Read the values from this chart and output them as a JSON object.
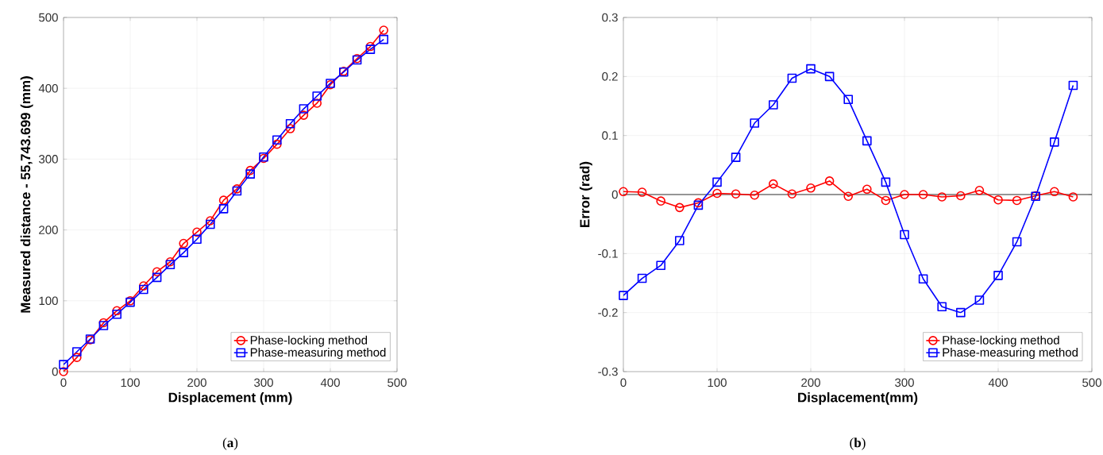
{
  "chart_data": [
    {
      "type": "line",
      "xlabel": "Displacement (mm)",
      "ylabel": "Measured distance - 55,743.699 (mm)",
      "annotations": [
        "(**a**)"
      ],
      "x": [
        0,
        20,
        40,
        60,
        80,
        100,
        120,
        140,
        160,
        180,
        200,
        220,
        240,
        260,
        280,
        300,
        320,
        340,
        360,
        380,
        400,
        420,
        440,
        460,
        480
      ],
      "series": [
        {
          "name": "Phase-locking method",
          "color": "#ff0000",
          "marker": "circle",
          "values": [
            0,
            20,
            45,
            69,
            86,
            100,
            121,
            141,
            155,
            181,
            197,
            213,
            242,
            258,
            284,
            301,
            321,
            343,
            362,
            379,
            405,
            424,
            442,
            459,
            482
          ]
        },
        {
          "name": "Phase-measuring method",
          "color": "#0000ff",
          "marker": "square",
          "values": [
            10,
            28,
            46,
            65,
            81,
            98,
            116,
            133,
            151,
            168,
            187,
            208,
            230,
            255,
            279,
            303,
            327,
            350,
            371,
            389,
            407,
            423,
            440,
            455,
            469
          ]
        }
      ],
      "xlim": [
        0,
        500
      ],
      "xticks": [
        0,
        100,
        200,
        300,
        400,
        500
      ],
      "ylim": [
        0,
        500
      ],
      "yticks": [
        0,
        100,
        200,
        300,
        400,
        500
      ],
      "grid": true,
      "legend": "bottom right",
      "line_style": "solid"
    },
    {
      "type": "line",
      "xlabel": "Displacement(mm)",
      "ylabel": "Error (rad)",
      "annotations": [
        "(**b**)"
      ],
      "x": [
        0,
        20,
        40,
        60,
        80,
        100,
        120,
        140,
        160,
        180,
        200,
        220,
        240,
        260,
        280,
        300,
        320,
        340,
        360,
        380,
        400,
        420,
        440,
        460,
        480
      ],
      "series": [
        {
          "name": "Phase-locking method",
          "color": "#ff0000",
          "marker": "circle",
          "values": [
            0.005,
            0.004,
            -0.011,
            -0.022,
            -0.014,
            0.002,
            0.001,
            -0.001,
            0.018,
            0.001,
            0.011,
            0.023,
            -0.003,
            0.009,
            -0.01,
            0,
            0,
            -0.004,
            -0.002,
            0.007,
            -0.009,
            -0.01,
            -0.002,
            0.005,
            -0.004
          ]
        },
        {
          "name": "Phase-measuring method",
          "color": "#0000ff",
          "marker": "square",
          "values": [
            -0.171,
            -0.142,
            -0.12,
            -0.078,
            -0.018,
            0.021,
            0.063,
            0.121,
            0.152,
            0.197,
            0.213,
            0.2,
            0.161,
            0.091,
            0.021,
            -0.068,
            -0.143,
            -0.19,
            -0.2,
            -0.179,
            -0.137,
            -0.08,
            -0.003,
            0.089,
            0.185
          ]
        }
      ],
      "xlim": [
        0,
        500
      ],
      "xticks": [
        0,
        100,
        200,
        300,
        400,
        500
      ],
      "ylim": [
        -0.3,
        0.3
      ],
      "yticks": [
        -0.3,
        -0.2,
        -0.1,
        0,
        0.1,
        0.2,
        0.3
      ],
      "grid": true,
      "legend": "bottom right",
      "line_style": "solid",
      "ref_lines": [
        {
          "axis": "y",
          "value": 0,
          "color": "#000000"
        }
      ]
    }
  ]
}
